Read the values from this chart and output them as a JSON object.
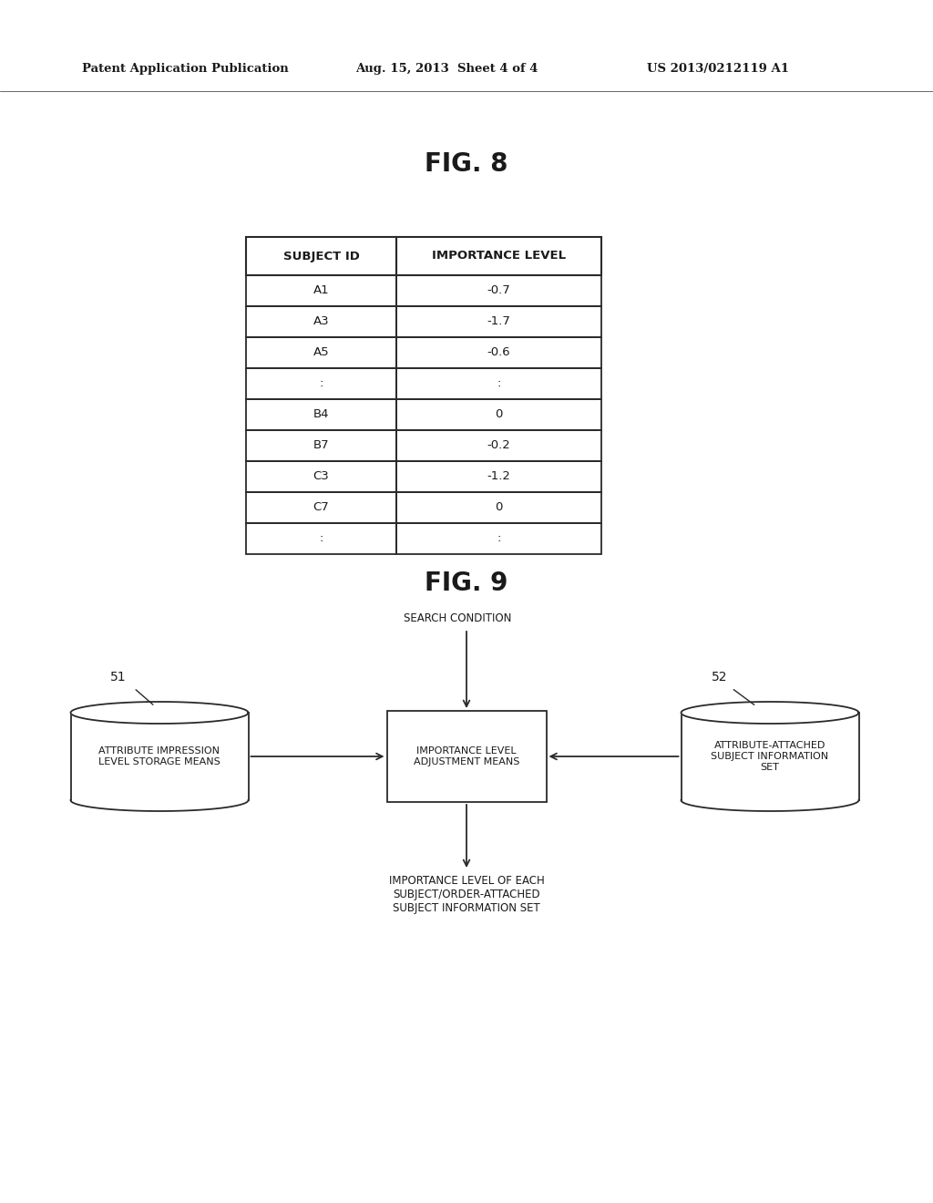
{
  "background_color": "#ffffff",
  "header_left": "Patent Application Publication",
  "header_mid": "Aug. 15, 2013  Sheet 4 of 4",
  "header_right": "US 2013/0212119 A1",
  "fig8_title": "FIG. 8",
  "fig9_title": "FIG. 9",
  "table_headers": [
    "SUBJECT ID",
    "IMPORTANCE LEVEL"
  ],
  "table_rows": [
    [
      "A1",
      "-0.7"
    ],
    [
      "A3",
      "-1.7"
    ],
    [
      "A5",
      "-0.6"
    ],
    [
      ":",
      ":"
    ],
    [
      "B4",
      "0"
    ],
    [
      "B7",
      "-0.2"
    ],
    [
      "C3",
      "-1.2"
    ],
    [
      "C7",
      "0"
    ],
    [
      ":",
      ":"
    ]
  ],
  "node51_label": "51",
  "node52_label": "52",
  "cylinder_left_label": "ATTRIBUTE IMPRESSION\nLEVEL STORAGE MEANS",
  "cylinder_right_label": "ATTRIBUTE-ATTACHED\nSUBJECT INFORMATION\nSET",
  "box_label": "IMPORTANCE LEVEL\nADJUSTMENT MEANS",
  "search_condition_label": "SEARCH CONDITION",
  "output_label": "IMPORTANCE LEVEL OF EACH\nSUBJECT/ORDER-ATTACHED\nSUBJECT INFORMATION SET",
  "text_color": "#1a1a1a",
  "line_color": "#2a2a2a",
  "font_size_header": 9.5,
  "font_size_fig_title": 20,
  "font_size_table_header": 9,
  "font_size_table_data": 9,
  "font_size_diagram": 8
}
